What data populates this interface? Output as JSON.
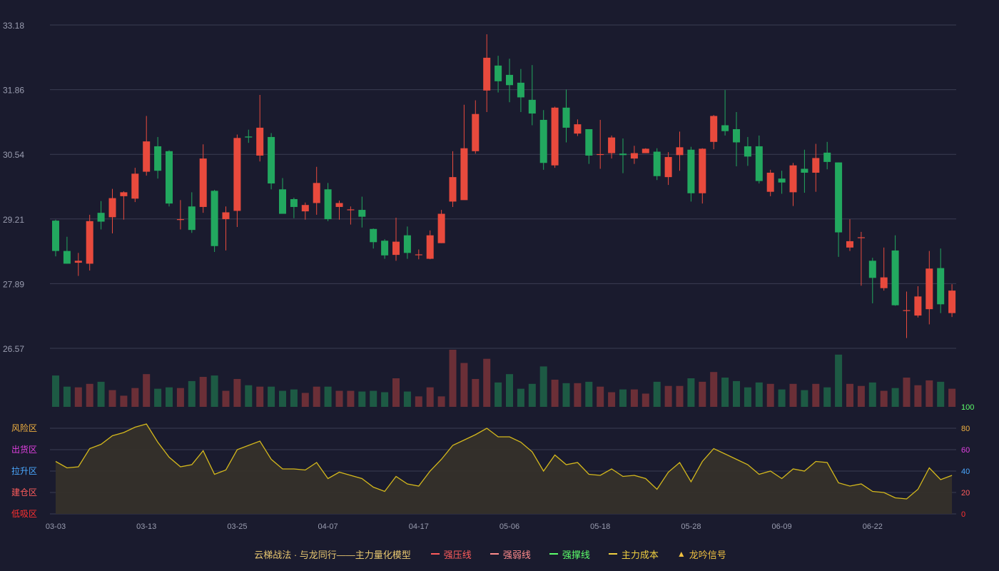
{
  "colors": {
    "background": "#1a1b2e",
    "grid": "#3a3d52",
    "axis_text": "#9a9db0",
    "up": "#e84a3d",
    "down": "#22a85f",
    "vol_up": "#6b2f37",
    "vol_down": "#1d5a44",
    "oscillator_line": "#d4b81c",
    "oscillator_fill": "#35302a"
  },
  "chart_data": [
    {
      "type": "candlestick",
      "x_labels": [
        "03-03",
        "03-13",
        "03-25",
        "04-07",
        "04-17",
        "05-06",
        "05-18",
        "05-28",
        "06-09",
        "06-22"
      ],
      "x_label_index": [
        0,
        8,
        16,
        24,
        32,
        40,
        48,
        56,
        64,
        72
      ],
      "y_ticks": [
        "33.18",
        "31.86",
        "30.54",
        "29.21",
        "27.89",
        "26.57"
      ],
      "ylim": [
        26.57,
        33.18
      ],
      "grid": true,
      "series": [
        {
          "ohlc": [
            [
              29.18,
              28.56,
              28.45,
              29.2
            ],
            [
              28.56,
              28.3,
              28.3,
              28.85
            ],
            [
              28.32,
              28.36,
              28.05,
              28.52
            ],
            [
              28.3,
              29.17,
              28.16,
              29.3
            ],
            [
              29.34,
              29.16,
              29.0,
              29.58
            ],
            [
              29.25,
              29.64,
              28.92,
              29.83
            ],
            [
              29.68,
              29.76,
              29.2,
              29.78
            ],
            [
              29.63,
              30.14,
              29.56,
              30.26
            ],
            [
              30.18,
              30.8,
              30.1,
              31.32
            ],
            [
              30.7,
              30.2,
              30.04,
              30.89
            ],
            [
              30.6,
              29.53,
              29.47,
              30.62
            ],
            [
              29.21,
              29.21,
              29.0,
              29.6
            ],
            [
              29.47,
              28.99,
              28.93,
              29.76
            ],
            [
              29.46,
              30.45,
              29.34,
              30.74
            ],
            [
              29.79,
              28.66,
              28.54,
              29.81
            ],
            [
              29.21,
              29.35,
              28.57,
              29.47
            ],
            [
              29.38,
              30.87,
              29.05,
              30.94
            ],
            [
              30.9,
              30.88,
              30.77,
              31.04
            ],
            [
              30.51,
              31.08,
              30.39,
              31.75
            ],
            [
              30.89,
              29.94,
              29.82,
              30.97
            ],
            [
              29.82,
              29.32,
              29.32,
              30.05
            ],
            [
              29.62,
              29.46,
              29.23,
              29.65
            ],
            [
              29.37,
              29.5,
              29.2,
              29.55
            ],
            [
              29.54,
              29.95,
              29.3,
              30.28
            ],
            [
              29.82,
              29.21,
              29.17,
              29.95
            ],
            [
              29.46,
              29.54,
              29.2,
              29.59
            ],
            [
              29.4,
              29.41,
              29.1,
              29.47
            ],
            [
              29.4,
              29.26,
              29.04,
              29.67
            ],
            [
              29.01,
              28.74,
              28.61,
              29.02
            ],
            [
              28.77,
              28.47,
              28.4,
              28.8
            ],
            [
              28.48,
              28.75,
              28.36,
              29.24
            ],
            [
              28.88,
              28.52,
              28.4,
              29.06
            ],
            [
              28.49,
              28.49,
              28.39,
              28.59
            ],
            [
              28.4,
              28.88,
              28.39,
              28.98
            ],
            [
              28.72,
              29.32,
              28.72,
              29.4
            ],
            [
              29.57,
              30.07,
              29.46,
              30.6
            ],
            [
              29.6,
              30.66,
              29.61,
              31.55
            ],
            [
              30.6,
              31.36,
              30.55,
              31.64
            ],
            [
              31.84,
              32.51,
              31.4,
              32.99
            ],
            [
              32.35,
              32.03,
              31.8,
              32.55
            ],
            [
              32.16,
              31.95,
              31.6,
              32.49
            ],
            [
              32.0,
              31.7,
              31.4,
              32.28
            ],
            [
              31.65,
              31.37,
              31.13,
              32.36
            ],
            [
              31.24,
              30.36,
              30.22,
              31.44
            ],
            [
              30.31,
              31.49,
              30.26,
              31.51
            ],
            [
              31.49,
              31.08,
              30.78,
              31.86
            ],
            [
              30.96,
              31.15,
              30.91,
              31.25
            ],
            [
              31.05,
              30.51,
              30.34,
              31.05
            ],
            [
              30.53,
              30.54,
              30.24,
              31.24
            ],
            [
              30.56,
              30.88,
              30.45,
              30.92
            ],
            [
              30.55,
              30.52,
              30.15,
              30.86
            ],
            [
              30.45,
              30.56,
              30.34,
              30.71
            ],
            [
              30.56,
              30.65,
              30.56,
              30.66
            ],
            [
              30.59,
              30.09,
              30.01,
              30.66
            ],
            [
              30.07,
              30.48,
              29.91,
              30.58
            ],
            [
              30.52,
              30.68,
              30.2,
              31.0
            ],
            [
              30.63,
              29.74,
              29.57,
              30.69
            ],
            [
              29.74,
              30.65,
              29.53,
              30.66
            ],
            [
              30.79,
              31.32,
              30.64,
              31.34
            ],
            [
              31.13,
              31.01,
              30.92,
              31.85
            ],
            [
              31.05,
              30.78,
              30.29,
              31.4
            ],
            [
              30.7,
              30.49,
              30.3,
              30.89
            ],
            [
              30.7,
              29.99,
              29.94,
              30.92
            ],
            [
              29.77,
              30.16,
              29.68,
              30.22
            ],
            [
              30.04,
              29.96,
              29.73,
              30.2
            ],
            [
              29.76,
              30.31,
              29.48,
              30.36
            ],
            [
              30.24,
              30.16,
              29.75,
              30.63
            ],
            [
              30.16,
              30.46,
              29.77,
              30.75
            ],
            [
              30.57,
              30.38,
              30.23,
              30.79
            ],
            [
              30.37,
              28.94,
              28.44,
              30.37
            ],
            [
              28.63,
              28.76,
              28.56,
              29.21
            ],
            [
              28.84,
              28.84,
              27.85,
              28.95
            ],
            [
              28.36,
              28.01,
              27.49,
              28.42
            ],
            [
              27.8,
              28.02,
              27.75,
              28.63
            ],
            [
              28.57,
              27.45,
              27.44,
              28.88
            ],
            [
              27.35,
              27.35,
              26.78,
              27.73
            ],
            [
              27.24,
              27.63,
              27.2,
              27.84
            ],
            [
              27.37,
              28.2,
              27.06,
              28.56
            ],
            [
              28.21,
              27.47,
              27.29,
              28.61
            ],
            [
              27.29,
              27.75,
              27.21,
              27.88
            ]
          ]
        }
      ]
    },
    {
      "type": "bar",
      "series": [
        {
          "volume": [
            45,
            29,
            28,
            33,
            36,
            24,
            16,
            27,
            47,
            26,
            28,
            27,
            37,
            43,
            45,
            23,
            40,
            31,
            29,
            29,
            23,
            25,
            20,
            29,
            29,
            23,
            23,
            22,
            23,
            21,
            41,
            22,
            15,
            28,
            15,
            82,
            63,
            40,
            69,
            35,
            47,
            26,
            33,
            58,
            39,
            34,
            34,
            36,
            29,
            21,
            25,
            25,
            19,
            36,
            30,
            30,
            41,
            36,
            50,
            42,
            37,
            28,
            35,
            33,
            25,
            33,
            24,
            33,
            28,
            75,
            33,
            30,
            35,
            23,
            27,
            42,
            31,
            38,
            36,
            26
          ],
          "ylim": [
            0,
            82
          ]
        }
      ]
    },
    {
      "type": "area",
      "y_ticks_right": [
        "100",
        "80",
        "60",
        "40",
        "20",
        "0"
      ],
      "zone_labels": [
        "风险区",
        "出货区",
        "拉升区",
        "建仓区",
        "低吸区"
      ],
      "ylim": [
        0,
        100
      ],
      "series": [
        {
          "values": [
            49,
            43,
            44,
            61,
            65,
            73,
            76,
            81,
            84,
            67,
            53,
            44,
            46,
            59,
            37,
            41,
            60,
            64,
            68,
            51,
            42,
            42,
            41,
            48,
            33,
            39,
            36,
            33,
            25,
            21,
            35,
            28,
            26,
            40,
            51,
            64,
            69,
            74,
            80,
            72,
            72,
            67,
            58,
            40,
            55,
            46,
            48,
            37,
            36,
            42,
            35,
            36,
            33,
            23,
            39,
            48,
            30,
            49,
            61,
            56,
            51,
            46,
            37,
            40,
            33,
            42,
            40,
            49,
            48,
            29,
            26,
            28,
            21,
            20,
            15,
            14,
            23,
            43,
            32,
            36
          ]
        }
      ]
    }
  ],
  "legend": {
    "caption": "云梯战法 · 与龙同行——主力量化模型",
    "items": [
      {
        "label": "强压线",
        "color": "#ff5c5c",
        "style": "solid"
      },
      {
        "label": "强弱线",
        "color": "#ff8c8c",
        "style": "dashed"
      },
      {
        "label": "强撑线",
        "color": "#5cff6b",
        "style": "solid"
      },
      {
        "label": "主力成本",
        "color": "#f0d040",
        "style": "dashed"
      },
      {
        "label": "龙吟信号",
        "color": "#f0c040",
        "style": "triangle"
      }
    ]
  }
}
